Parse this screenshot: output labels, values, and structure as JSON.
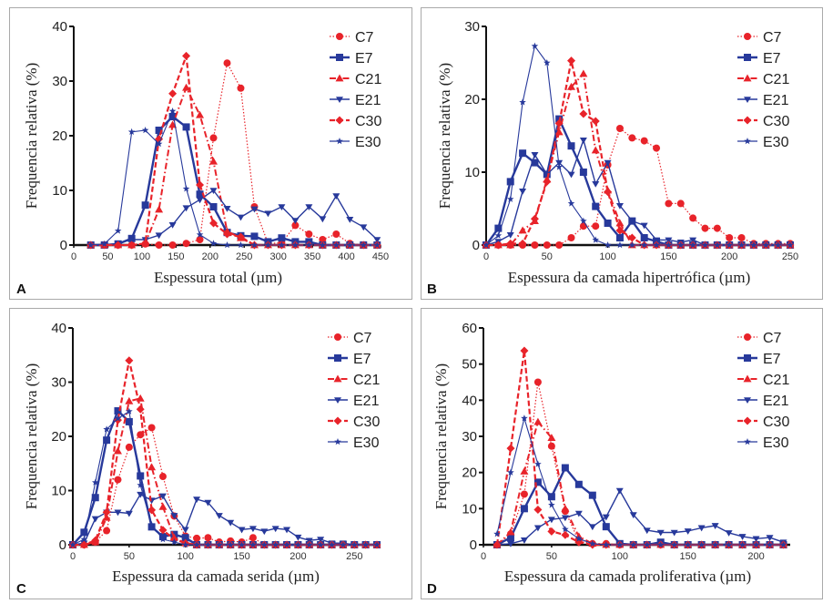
{
  "chart_data": [
    {
      "panel": "A",
      "type": "line",
      "xlabel": "Espessura total (µm)",
      "ylabel": "Frequencia relativa (%)",
      "xlim": [
        0,
        450
      ],
      "ylim": [
        0,
        40
      ],
      "xticks": [
        0,
        50,
        100,
        150,
        200,
        250,
        300,
        350,
        400,
        450
      ],
      "yticks": [
        0,
        10,
        20,
        30,
        40
      ],
      "legend": "top-right",
      "x": [
        25,
        45,
        65,
        85,
        105,
        125,
        145,
        165,
        185,
        205,
        225,
        245,
        265,
        285,
        305,
        325,
        345,
        365,
        385,
        405,
        425,
        445
      ],
      "series": [
        {
          "name": "C7",
          "values": [
            0,
            0,
            0,
            0,
            0.2,
            0,
            0,
            0.3,
            1,
            19.6,
            33.3,
            28.7,
            7,
            0.3,
            0.4,
            3.6,
            2,
            1,
            2,
            0.3,
            0,
            0
          ]
        },
        {
          "name": "E7",
          "values": [
            0,
            0,
            0.2,
            1.2,
            7.3,
            21,
            23.5,
            21.6,
            9.3,
            7,
            2.3,
            1.7,
            1.6,
            0.6,
            1.3,
            0.6,
            0.6,
            0,
            0,
            0,
            0,
            0
          ]
        },
        {
          "name": "C21",
          "values": [
            0,
            0,
            0,
            0,
            0.3,
            6.5,
            22,
            28.8,
            23.8,
            15.3,
            2.5,
            1.3,
            0,
            0,
            0,
            0,
            0,
            0,
            0,
            0,
            0,
            0
          ]
        },
        {
          "name": "E21",
          "values": [
            0,
            0,
            0.3,
            1,
            1,
            1.8,
            3.7,
            6.8,
            8.3,
            10,
            6.7,
            5.1,
            6.6,
            5.8,
            7,
            4.5,
            7,
            4.8,
            9,
            4.7,
            3.3,
            1
          ]
        },
        {
          "name": "C30",
          "values": [
            0,
            0,
            0,
            0,
            0.3,
            19.4,
            27.7,
            34.6,
            11,
            4,
            2,
            1.5,
            0,
            0,
            0,
            0,
            0,
            0,
            0,
            0,
            0,
            0
          ]
        },
        {
          "name": "E30",
          "values": [
            0,
            0.2,
            2.6,
            20.7,
            21,
            18.5,
            24.5,
            10.3,
            1.9,
            0.3,
            0,
            0,
            0,
            0,
            0,
            0,
            0,
            0,
            0,
            0,
            0,
            0
          ]
        }
      ]
    },
    {
      "panel": "B",
      "type": "line",
      "xlabel": "Espessura da camada hipertrófica (µm)",
      "ylabel": "Frequencia relativa (%)",
      "xlim": [
        0,
        250
      ],
      "ylim": [
        0,
        30
      ],
      "xticks": [
        0,
        50,
        100,
        150,
        200,
        250
      ],
      "yticks": [
        0,
        10,
        20,
        30
      ],
      "legend": "top-right",
      "x": [
        0,
        10,
        20,
        30,
        40,
        50,
        60,
        70,
        80,
        90,
        100,
        110,
        120,
        130,
        140,
        150,
        160,
        170,
        180,
        190,
        200,
        210,
        220,
        230,
        240,
        250
      ],
      "series": [
        {
          "name": "C7",
          "values": [
            0,
            0,
            0,
            0,
            0,
            0,
            0,
            1,
            2.6,
            2.6,
            11,
            16,
            14.7,
            14.3,
            13.3,
            5.7,
            5.7,
            3.7,
            2.3,
            2.3,
            1,
            1,
            0.2,
            0.2,
            0.2,
            0.2
          ]
        },
        {
          "name": "E7",
          "values": [
            0,
            2.3,
            8.7,
            12.6,
            11.3,
            9.7,
            17.3,
            13.6,
            10,
            5.3,
            3,
            1,
            3.3,
            1,
            0.5,
            0,
            0,
            0,
            0,
            0,
            0,
            0,
            0,
            0,
            0,
            0
          ]
        },
        {
          "name": "C21",
          "values": [
            0,
            0,
            0,
            2,
            3.3,
            9,
            15.5,
            21.7,
            23.5,
            13,
            7.5,
            3,
            0,
            0,
            0,
            0,
            0,
            0,
            0,
            0,
            0,
            0,
            0,
            0,
            0,
            0
          ]
        },
        {
          "name": "E21",
          "values": [
            0,
            0.5,
            1.4,
            7.4,
            12.4,
            9.7,
            11.3,
            9.7,
            14.4,
            8.4,
            11.3,
            5.4,
            3.3,
            2.7,
            0.7,
            0.7,
            0.4,
            0.7,
            0,
            0,
            0,
            0,
            0,
            0,
            0,
            0
          ]
        },
        {
          "name": "C30",
          "values": [
            0,
            0,
            0.2,
            0.2,
            3.6,
            8.7,
            16.7,
            25.3,
            18,
            17,
            7.3,
            2,
            1,
            0,
            0,
            0,
            0,
            0,
            0,
            0,
            0,
            0,
            0,
            0,
            0,
            0
          ]
        },
        {
          "name": "E30",
          "values": [
            0,
            1.3,
            6.3,
            19.6,
            27.3,
            25,
            10.7,
            5.7,
            3.3,
            0.7,
            0,
            0,
            0,
            0,
            0,
            0,
            0,
            0,
            0,
            0,
            0,
            0,
            0,
            0,
            0,
            0
          ]
        }
      ]
    },
    {
      "panel": "C",
      "type": "line",
      "xlabel": "Espessura da camada serida  (µm)",
      "ylabel": "Frequencia relativa (%)",
      "xlim": [
        0,
        270
      ],
      "ylim": [
        0,
        40
      ],
      "xticks": [
        0,
        50,
        100,
        150,
        200,
        250
      ],
      "yticks": [
        0,
        10,
        20,
        30,
        40
      ],
      "legend": "top-right",
      "x": [
        0,
        10,
        20,
        30,
        40,
        50,
        60,
        70,
        80,
        90,
        100,
        110,
        120,
        130,
        140,
        150,
        160,
        170,
        180,
        190,
        200,
        210,
        220,
        230,
        240,
        250,
        260,
        270
      ],
      "series": [
        {
          "name": "C7",
          "values": [
            0,
            0,
            0.5,
            2.6,
            12,
            18,
            20.3,
            21.6,
            12.6,
            5.3,
            1.6,
            1.2,
            1.3,
            0.5,
            0.7,
            0.5,
            1.3,
            0,
            0,
            0,
            0,
            0,
            0,
            0,
            0,
            0,
            0,
            0
          ]
        },
        {
          "name": "E7",
          "values": [
            0,
            2.3,
            8.7,
            19.3,
            24.7,
            22.7,
            12.7,
            3.3,
            1.5,
            1.9,
            1.3,
            0,
            0,
            0,
            0,
            0,
            0,
            0,
            0,
            0,
            0,
            0,
            0,
            0,
            0,
            0,
            0,
            0
          ]
        },
        {
          "name": "C21",
          "values": [
            0,
            0,
            0.5,
            5,
            17.3,
            26.5,
            27,
            14.3,
            7,
            1.3,
            0.3,
            0,
            0,
            0,
            0,
            0,
            0,
            0,
            0,
            0,
            0,
            0,
            0,
            0,
            0,
            0,
            0,
            0
          ]
        },
        {
          "name": "E21",
          "values": [
            0,
            0.3,
            4.8,
            6,
            6,
            5.8,
            9.3,
            8.2,
            9,
            5.4,
            2.8,
            8.4,
            7.8,
            5.4,
            4.1,
            2.8,
            3,
            2.5,
            3,
            2.8,
            1.4,
            0.8,
            1,
            0.3,
            0.3,
            0,
            0,
            0
          ]
        },
        {
          "name": "C30",
          "values": [
            0,
            0,
            0.8,
            6,
            23,
            34,
            25,
            6.4,
            2.7,
            1,
            0.3,
            0,
            0,
            0,
            0,
            0,
            0,
            0,
            0,
            0,
            0,
            0,
            0,
            0,
            0,
            0,
            0,
            0
          ]
        },
        {
          "name": "E30",
          "values": [
            0,
            1,
            11.5,
            21.3,
            23.3,
            24.6,
            11,
            3.7,
            1,
            0.5,
            0,
            0,
            0,
            0,
            0,
            0,
            0,
            0,
            0,
            0,
            0,
            0,
            0,
            0,
            0,
            0,
            0,
            0
          ]
        }
      ]
    },
    {
      "panel": "D",
      "type": "line",
      "xlabel": "Espessura da camada proliferativa (µm)",
      "ylabel": "Frequencia relativa (%)",
      "xlim": [
        0,
        225
      ],
      "ylim": [
        0,
        60
      ],
      "xticks": [
        0,
        50,
        100,
        150,
        200
      ],
      "yticks": [
        0,
        10,
        20,
        30,
        40,
        50,
        60
      ],
      "legend": "top-right",
      "x": [
        10,
        20,
        30,
        40,
        50,
        60,
        70,
        80,
        90,
        100,
        110,
        120,
        130,
        140,
        150,
        160,
        170,
        180,
        190,
        200,
        210,
        220
      ],
      "series": [
        {
          "name": "C7",
          "values": [
            0,
            3,
            14,
            45,
            27.3,
            9.3,
            1,
            0.3,
            0.3,
            0,
            0,
            0,
            0,
            0,
            0,
            0,
            0,
            0,
            0,
            0,
            0,
            0
          ]
        },
        {
          "name": "E7",
          "values": [
            0,
            2,
            10,
            17.3,
            13.3,
            21.3,
            16.7,
            13.7,
            5,
            0.3,
            0,
            0,
            0.7,
            0,
            0,
            0,
            0,
            0,
            0,
            0,
            0,
            0
          ]
        },
        {
          "name": "C21",
          "values": [
            0,
            3.5,
            20.3,
            34,
            29.6,
            10,
            2.3,
            0.3,
            0,
            0,
            0,
            0,
            0,
            0,
            0,
            0,
            0,
            0,
            0,
            0,
            0,
            0
          ]
        },
        {
          "name": "E21",
          "values": [
            0,
            0.3,
            1.3,
            4.7,
            7,
            7.5,
            8.7,
            5,
            7.7,
            15,
            8.3,
            4,
            3.4,
            3.4,
            3.8,
            4.7,
            5.3,
            3.3,
            2.3,
            1.7,
            2,
            0.7
          ]
        },
        {
          "name": "C30",
          "values": [
            0,
            26.7,
            53.7,
            9.7,
            3.7,
            2.7,
            0.7,
            0,
            0,
            0,
            0,
            0,
            0,
            0,
            0,
            0,
            0,
            0,
            0,
            0,
            0,
            0
          ]
        },
        {
          "name": "E30",
          "values": [
            3,
            20,
            35,
            22.3,
            11,
            4.3,
            1.7,
            0.3,
            0,
            0,
            0,
            0,
            0,
            0,
            0,
            0,
            0,
            0,
            0,
            0,
            0,
            0
          ]
        }
      ]
    }
  ],
  "series_styles": {
    "C7": {
      "color": "#e8232a",
      "marker": "circle",
      "dash": "dotted"
    },
    "E7": {
      "color": "#27399b",
      "marker": "square",
      "dash": "solid-thick"
    },
    "C21": {
      "color": "#e8232a",
      "marker": "triangle",
      "dash": "dashdot"
    },
    "E21": {
      "color": "#27399b",
      "marker": "triangle-down",
      "dash": "solid"
    },
    "C30": {
      "color": "#e8232a",
      "marker": "diamond",
      "dash": "dashed"
    },
    "E30": {
      "color": "#27399b",
      "marker": "star",
      "dash": "solid-thin"
    }
  },
  "panel_labels": [
    "A",
    "B",
    "C",
    "D"
  ]
}
